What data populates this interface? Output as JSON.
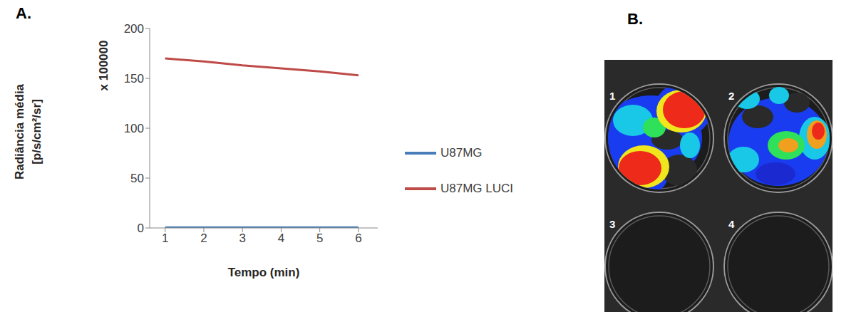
{
  "chart_data": {
    "type": "line",
    "panel": "A.",
    "y_label": "Radiância média [p/s/cm²/sr]",
    "y_multiplier": "x 100000",
    "x_label": "Tempo (min)",
    "x": [
      1,
      2,
      3,
      4,
      5,
      6
    ],
    "xlim": [
      0.6,
      6.5
    ],
    "xticks": [
      1,
      2,
      3,
      4,
      5,
      6
    ],
    "ylim": [
      0,
      200
    ],
    "yticks": [
      0,
      50,
      100,
      150,
      200
    ],
    "grid": false,
    "legend": "right",
    "series": [
      {
        "name": "U87MG",
        "color": "#4a7ebb",
        "values": [
          0.5,
          0.5,
          0.5,
          0.5,
          0.5,
          0.5
        ]
      },
      {
        "name": "U87MG LUCI",
        "color": "#be4b48",
        "values": [
          170,
          167,
          163,
          160,
          157,
          153
        ]
      }
    ]
  },
  "panel_b": {
    "letter": "B.",
    "wells": [
      "1",
      "2",
      "3",
      "4"
    ]
  }
}
